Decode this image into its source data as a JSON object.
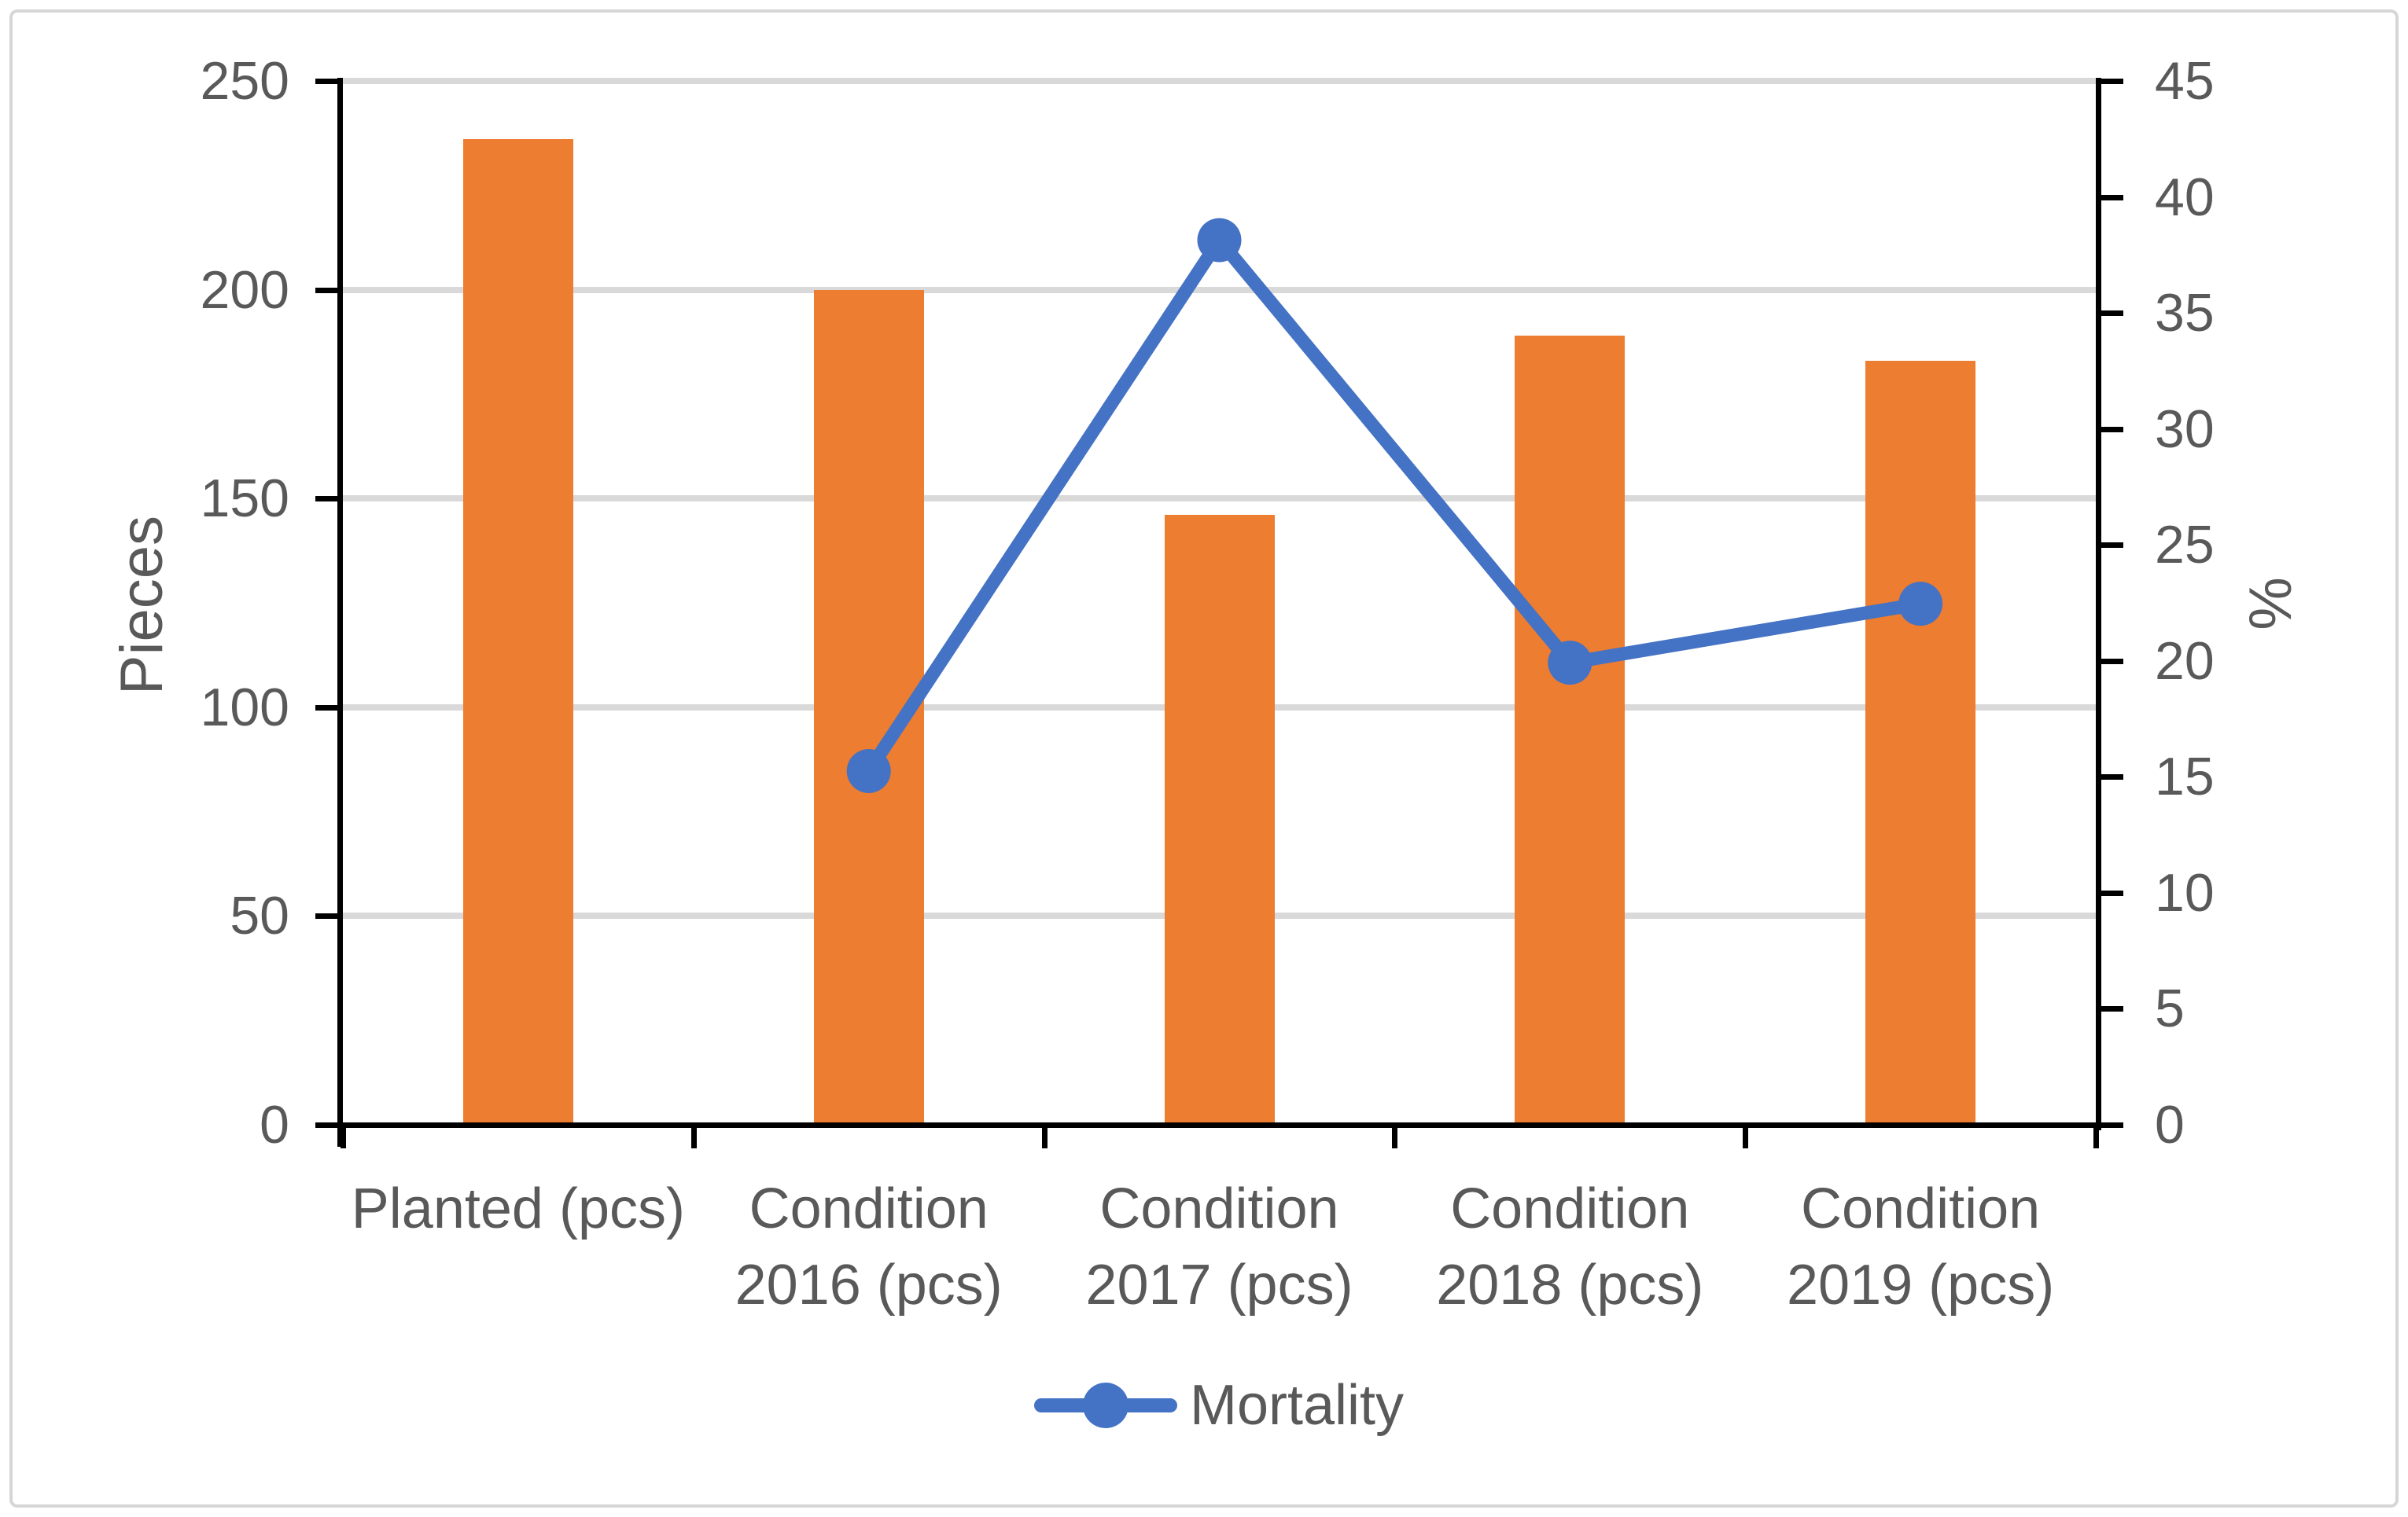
{
  "chart_data": {
    "type": "bar",
    "subtype": "combo-bar-line-dual-axis",
    "categories": [
      "Planted (pcs)",
      "Condition 2016 (pcs)",
      "Condition 2017 (pcs)",
      "Condition 2018 (pcs)",
      "Condition 2019 (pcs)"
    ],
    "category_label_lines": [
      [
        "Planted (pcs)"
      ],
      [
        "Condition",
        "2016 (pcs)"
      ],
      [
        "Condition",
        "2017 (pcs)"
      ],
      [
        "Condition",
        "2018 (pcs)"
      ],
      [
        "Condition",
        "2019 (pcs)"
      ]
    ],
    "series": [
      {
        "name": "Pieces",
        "type": "bar",
        "axis": "left",
        "color": "#ED7D31",
        "values": [
          236,
          200,
          146,
          189,
          183
        ]
      },
      {
        "name": "Mortality",
        "type": "line",
        "axis": "right",
        "color": "#4472C4",
        "marker": "circle",
        "values": [
          null,
          15.25,
          38.14,
          19.92,
          22.46
        ]
      }
    ],
    "left_axis": {
      "label": "Pieces",
      "min": 0,
      "max": 250,
      "step": 50,
      "ticks": [
        0,
        50,
        100,
        150,
        200,
        250
      ]
    },
    "right_axis": {
      "label": "%",
      "min": 0,
      "max": 45,
      "step": 5,
      "ticks": [
        0,
        5,
        10,
        15,
        20,
        25,
        30,
        35,
        40,
        45
      ]
    },
    "legend": [
      {
        "label": "Mortality",
        "color": "#4472C4",
        "marker": "line-circle"
      }
    ],
    "legend_position": "bottom",
    "grid": {
      "show": true,
      "color": "#D9D9D9"
    },
    "colors": {
      "bar": "#ED7D31",
      "line": "#4472C4",
      "text": "#595959",
      "axis": "#000000",
      "gridline": "#D9D9D9",
      "background": "#FFFFFF",
      "border": "#D6D6D6"
    }
  }
}
